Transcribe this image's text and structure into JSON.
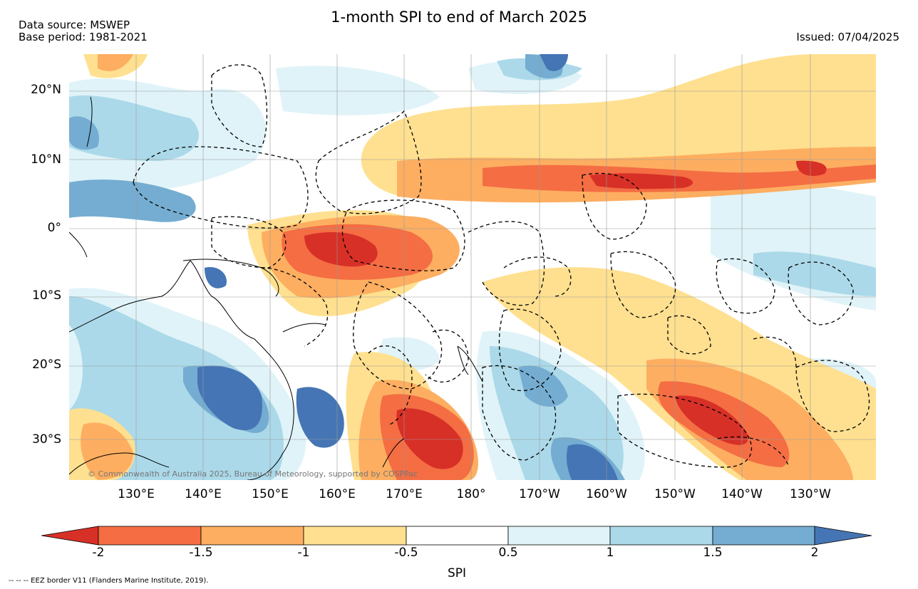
{
  "header": {
    "title": "1-month SPI to end of March 2025",
    "source": "Data source: MSWEP",
    "base_period": "Base period: 1981-2021",
    "issued": "Issued: 07/04/2025"
  },
  "map": {
    "lat_labels": [
      "20°N",
      "10°N",
      "0°",
      "10°S",
      "20°S",
      "30°S"
    ],
    "lon_labels": [
      "130°E",
      "140°E",
      "150°E",
      "160°E",
      "170°E",
      "180°",
      "170°W",
      "160°W",
      "150°W",
      "140°W",
      "130°W"
    ],
    "copyright": "© Commonwealth of Australia 2025, Bureau of Meteorology, supported by COSPPac"
  },
  "legend": {
    "label": "SPI",
    "ticks": [
      "-2",
      "-1.5",
      "-1",
      "-0.5",
      "0.5",
      "1",
      "1.5",
      "2"
    ],
    "colors": [
      "#d73027",
      "#f46d43",
      "#fdae61",
      "#fee090",
      "#ffffff",
      "#e0f3f8",
      "#abd9e9",
      "#74add1",
      "#4575b4"
    ]
  },
  "footnote": "-- -- -- EEZ border V11 (Flanders Marine Institute, 2019)."
}
